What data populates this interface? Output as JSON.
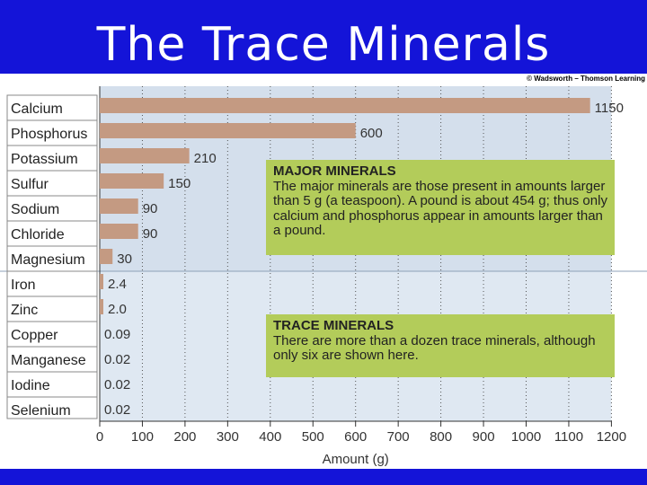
{
  "slide": {
    "title": "The Trace Minerals",
    "credit": "© Wadsworth – Thomson Learning"
  },
  "colors": {
    "background": "#1414d8",
    "bar": "#c49a82",
    "major_band": "#d4dfec",
    "trace_band": "#dfe8f2",
    "note_box": "#b3cc5a"
  },
  "chart_data": {
    "type": "bar",
    "orientation": "horizontal",
    "categories": [
      "Calcium",
      "Phosphorus",
      "Potassium",
      "Sulfur",
      "Sodium",
      "Chloride",
      "Magnesium",
      "Iron",
      "Zinc",
      "Copper",
      "Manganese",
      "Iodine",
      "Selenium"
    ],
    "values": [
      1150,
      600,
      210,
      150,
      90,
      90,
      30,
      2.4,
      2.0,
      0.09,
      0.02,
      0.02,
      0.02
    ],
    "value_labels": [
      "1150",
      "600",
      "210",
      "150",
      "90",
      "90",
      "30",
      "2.4",
      "2.0",
      "0.09",
      "0.02",
      "0.02",
      "0.02"
    ],
    "xlabel": "Amount (g)",
    "xlim": [
      0,
      1200
    ],
    "xticks": [
      "0",
      "100",
      "200",
      "300",
      "400",
      "500",
      "600",
      "700",
      "800",
      "900",
      "1000",
      "1100",
      "1200"
    ],
    "grid": "vertical dotted"
  },
  "notes": {
    "major": {
      "heading": "MAJOR MINERALS",
      "text": "The major minerals are those present in amounts larger than 5 g (a teaspoon). A pound is about 454 g; thus only calcium and phosphorus appear in amounts larger than a pound."
    },
    "trace": {
      "heading": "TRACE MINERALS",
      "text": "There are more than a dozen trace minerals, although only six are shown here."
    }
  }
}
